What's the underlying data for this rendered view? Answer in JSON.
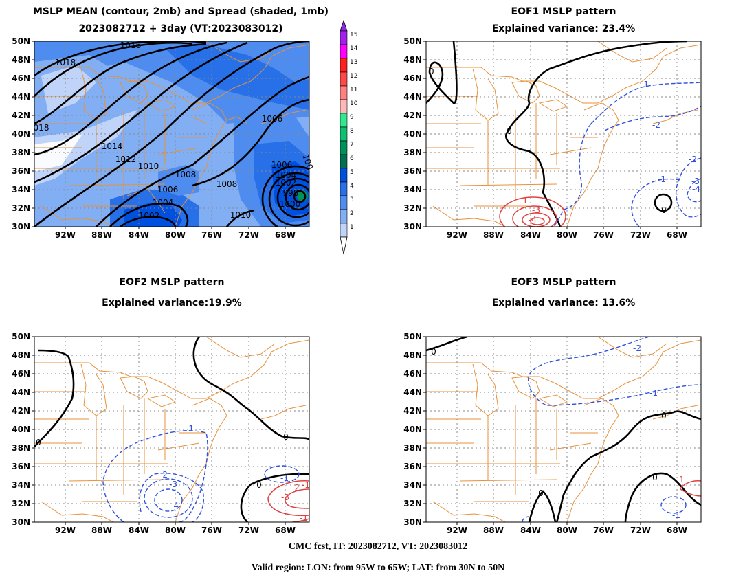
{
  "panels": {
    "p1": {
      "title_line1": "MSLP MEAN (contour, 2mb) and Spread (shaded, 1mb)",
      "title_line2": "2023082712 + 3day (VT:2023083012)",
      "contour_labels": [
        "1016",
        "1018",
        "018",
        "1014",
        "1012",
        "1010",
        "1008",
        "1006",
        "1004",
        "1002",
        "1008",
        "1006",
        "1010",
        "1006",
        "1004",
        "1002",
        "998",
        "1000",
        "100"
      ]
    },
    "p2": {
      "title_line1": "EOF1 MSLP pattern",
      "title_line2": "Explained variance: 23.4%",
      "contour_labels": [
        "0",
        "0",
        "-1",
        "-2",
        "-2",
        "-1",
        "-3",
        "-4",
        "0",
        "-1",
        "-3",
        "-4"
      ]
    },
    "p3": {
      "title_line1": "EOF2 MSLP pattern",
      "title_line2": "Explained variance:19.9%",
      "contour_labels": [
        "0",
        "0",
        "-1",
        "-2",
        "-3",
        "-4",
        "-1",
        "0",
        "-1",
        "-2",
        "-3",
        "-1"
      ]
    },
    "p4": {
      "title_line1": "EOF3 MSLP pattern",
      "title_line2": "Explained variance: 13.6%",
      "contour_labels": [
        "0",
        "-2",
        "-1",
        "0",
        "0",
        "0",
        "-1",
        "1"
      ]
    }
  },
  "axes": {
    "lat_ticks": [
      "50N",
      "48N",
      "46N",
      "44N",
      "42N",
      "40N",
      "38N",
      "36N",
      "34N",
      "32N",
      "30N"
    ],
    "lon_ticks": [
      "92W",
      "88W",
      "84W",
      "80W",
      "76W",
      "72W",
      "68W"
    ]
  },
  "colorbar": {
    "labels": [
      "15",
      "14",
      "13",
      "12",
      "11",
      "10",
      "9",
      "8",
      "7",
      "6",
      "5",
      "4",
      "3",
      "2",
      "1"
    ],
    "colors": [
      "#a020f0",
      "#ff00ff",
      "#ff2020",
      "#ff4848",
      "#ff8080",
      "#ffb8b8",
      "#30e890",
      "#10c070",
      "#00905a",
      "#006e50",
      "#0050e0",
      "#2870e8",
      "#4f8cf0",
      "#82aff4",
      "#bfd4f8"
    ]
  },
  "colors": {
    "coast": "#e8913a",
    "positive": "#e04040",
    "negative": "#3050e0",
    "zero": "#000000"
  },
  "footer": {
    "line1": "CMC fcst, IT: 2023082712, VT: 2023083012",
    "line2": "Valid region: LON: from 95W to 65W; LAT: from 30N to 50N"
  }
}
